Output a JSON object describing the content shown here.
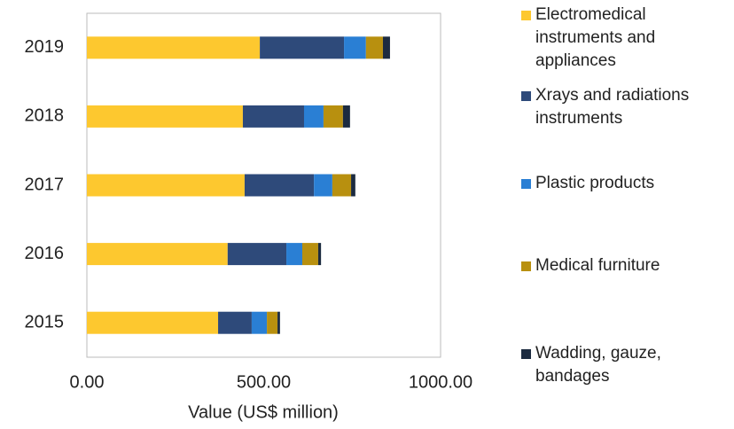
{
  "chart_data": {
    "type": "stacked-barh",
    "x_label": "Value (US$ million)",
    "categories": [
      "2015",
      "2016",
      "2017",
      "2018",
      "2019"
    ],
    "series": [
      {
        "name": "Electromedical instruments and appliances",
        "color": "#fdc82f",
        "values": [
          371,
          398,
          446,
          441,
          489
        ]
      },
      {
        "name": "Xrays and radiations instruments",
        "color": "#2e4a7a",
        "values": [
          95,
          166,
          196,
          173,
          238
        ]
      },
      {
        "name": "Plastic products",
        "color": "#2a7fd4",
        "values": [
          43,
          45,
          52,
          55,
          62
        ]
      },
      {
        "name": "Medical furniture",
        "color": "#b8900f",
        "values": [
          30,
          45,
          53,
          55,
          48
        ]
      },
      {
        "name": "Wadding, gauze, bandages",
        "color": "#1c2b40",
        "values": [
          7,
          8,
          12,
          20,
          20
        ]
      }
    ],
    "xlim": [
      0,
      1000
    ],
    "xticks": [
      {
        "value": 0,
        "label": "0.00"
      },
      {
        "value": 500,
        "label": "500.00"
      },
      {
        "value": 1000,
        "label": "1000.00"
      }
    ],
    "legend": "right"
  }
}
